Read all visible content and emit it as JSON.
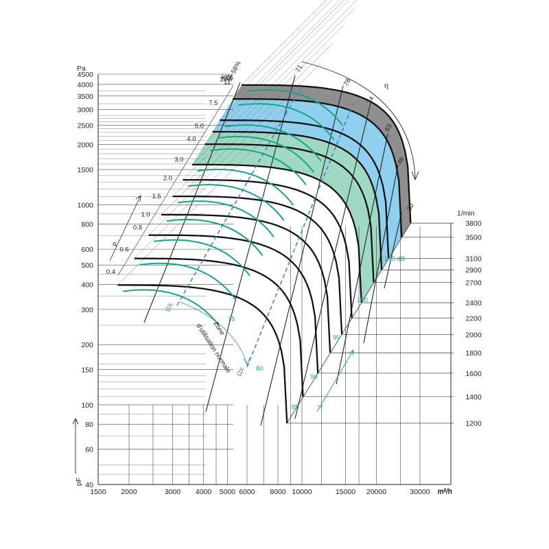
{
  "chart_data": {
    "type": "line",
    "title": "",
    "xlabel": "m³/h",
    "ylabel": "Pa",
    "y_symbol": "pF",
    "speed_unit": "1/min",
    "power_unit": "kW",
    "scale": "log-log",
    "xlim": [
      1500,
      40000
    ],
    "ylim": [
      40,
      4500
    ],
    "x_ticks": [
      "1500",
      "2000",
      "3000",
      "4000",
      "5000",
      "6000",
      "8000",
      "10000",
      "15000",
      "20000",
      "30000",
      "m³/h"
    ],
    "y_ticks": [
      {
        "label": "4500",
        "value": 4500
      },
      {
        "label": "4000",
        "value": 4000
      },
      {
        "label": "3500",
        "value": 3500
      },
      {
        "label": "3000",
        "value": 3000
      },
      {
        "label": "2500",
        "value": 2500
      },
      {
        "label": "2000",
        "value": 2000
      },
      {
        "label": "1500",
        "value": 1500
      },
      {
        "label": "1000",
        "value": 1000
      },
      {
        "label": "800",
        "value": 800
      },
      {
        "label": "600",
        "value": 600
      },
      {
        "label": "500",
        "value": 500
      },
      {
        "label": "400",
        "value": 400
      },
      {
        "label": "300",
        "value": 300
      },
      {
        "label": "200",
        "value": 200
      },
      {
        "label": "150",
        "value": 150
      },
      {
        "label": "100",
        "value": 100
      },
      {
        "label": "80",
        "value": 80
      },
      {
        "label": "60",
        "value": 60
      },
      {
        "label": "40",
        "value": 40
      }
    ],
    "speed_ticks": [
      {
        "label": "3800",
        "value": 810
      },
      {
        "label": "3500",
        "value": 690
      },
      {
        "label": "3100",
        "value": 540
      },
      {
        "label": "2900",
        "value": 473
      },
      {
        "label": "2700",
        "value": 410
      },
      {
        "label": "2400",
        "value": 324
      },
      {
        "label": "2200",
        "value": 272
      },
      {
        "label": "2000",
        "value": 225
      },
      {
        "label": "1800",
        "value": 182
      },
      {
        "label": "1600",
        "value": 144
      },
      {
        "label": "1400",
        "value": 110
      },
      {
        "label": "1200",
        "value": 81
      }
    ],
    "speed_curves": [
      {
        "rpm": 3800,
        "x_end": 27500,
        "y_end": 810
      },
      {
        "rpm": 3500,
        "x_end": 25300,
        "y_end": 690
      },
      {
        "rpm": 3100,
        "x_end": 22400,
        "y_end": 540
      },
      {
        "rpm": 2900,
        "x_end": 21000,
        "y_end": 473
      },
      {
        "rpm": 2700,
        "x_end": 19500,
        "y_end": 410
      },
      {
        "rpm": 2400,
        "x_end": 17400,
        "y_end": 324
      },
      {
        "rpm": 2200,
        "x_end": 15900,
        "y_end": 272
      },
      {
        "rpm": 2000,
        "x_end": 14500,
        "y_end": 225
      },
      {
        "rpm": 1800,
        "x_end": 13000,
        "y_end": 182
      },
      {
        "rpm": 1600,
        "x_end": 11600,
        "y_end": 144
      },
      {
        "rpm": 1400,
        "x_end": 10100,
        "y_end": 110
      },
      {
        "rpm": 1200,
        "x_end": 8700,
        "y_end": 81
      }
    ],
    "efficiency_labels": [
      "58%",
      "71",
      "78",
      "74",
      "63",
      "46",
      "30"
    ],
    "efficiency_symbol": "η",
    "power_labels": [
      {
        "label": "11",
        "y": 3950
      },
      {
        "label": "15",
        "y": 4160
      },
      {
        "label": "18.5",
        "y": 4080
      },
      {
        "label": "7.5",
        "y": 3100
      },
      {
        "label": "5.0",
        "y": 2380
      },
      {
        "label": "4.0",
        "y": 2050
      },
      {
        "label": "3.0",
        "y": 1620
      },
      {
        "label": "2.0",
        "y": 1310
      },
      {
        "label": "1.5",
        "y": 1060
      },
      {
        "label": "1.0",
        "y": 860
      },
      {
        "label": "0.8",
        "y": 740
      },
      {
        "label": "0.6",
        "y": 575
      },
      {
        "label": "0.4",
        "y": 445
      }
    ],
    "power_symbol": "P",
    "power_subscript": "f",
    "sound_labels": [
      "75",
      "80",
      "85",
      "90",
      "95",
      "100",
      "105 dB"
    ],
    "sound_symbol": "L",
    "sound_subscript": "WA",
    "operating_zone": {
      "line1": "Zone",
      "line2": "d'utilisation normale",
      "marker": "ΩΧ"
    }
  }
}
